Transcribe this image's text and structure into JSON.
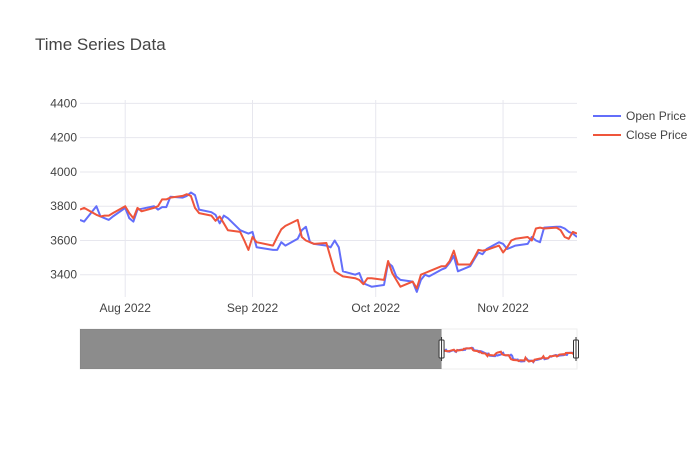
{
  "chart_data": {
    "type": "line",
    "title": "Time Series Data",
    "xlabel": "",
    "ylabel": "",
    "x_range": [
      "2022-07-21",
      "2022-11-19"
    ],
    "ylim": [
      3270,
      4420
    ],
    "y_ticks": [
      3400,
      3600,
      3800,
      4000,
      4200,
      4400
    ],
    "x_ticks": [
      {
        "date": "2022-08-01",
        "label": "Aug 2022"
      },
      {
        "date": "2022-09-01",
        "label": "Sep 2022"
      },
      {
        "date": "2022-10-01",
        "label": "Oct 2022"
      },
      {
        "date": "2022-11-01",
        "label": "Nov 2022"
      }
    ],
    "grid": true,
    "legend_position": "top-right",
    "rangeslider": {
      "visible": true,
      "full_range": [
        "2021-09-01",
        "2022-11-19"
      ],
      "selected": [
        "2022-07-21",
        "2022-11-19"
      ]
    },
    "x": [
      "2022-07-21",
      "2022-07-22",
      "2022-07-25",
      "2022-07-26",
      "2022-07-27",
      "2022-07-28",
      "2022-07-29",
      "2022-08-01",
      "2022-08-02",
      "2022-08-03",
      "2022-08-04",
      "2022-08-05",
      "2022-08-08",
      "2022-08-09",
      "2022-08-10",
      "2022-08-11",
      "2022-08-12",
      "2022-08-15",
      "2022-08-16",
      "2022-08-17",
      "2022-08-18",
      "2022-08-19",
      "2022-08-22",
      "2022-08-23",
      "2022-08-24",
      "2022-08-25",
      "2022-08-26",
      "2022-08-29",
      "2022-08-30",
      "2022-08-31",
      "2022-09-01",
      "2022-09-02",
      "2022-09-06",
      "2022-09-07",
      "2022-09-08",
      "2022-09-09",
      "2022-09-12",
      "2022-09-13",
      "2022-09-14",
      "2022-09-15",
      "2022-09-16",
      "2022-09-19",
      "2022-09-20",
      "2022-09-21",
      "2022-09-22",
      "2022-09-23",
      "2022-09-26",
      "2022-09-27",
      "2022-09-28",
      "2022-09-29",
      "2022-09-30",
      "2022-10-03",
      "2022-10-04",
      "2022-10-05",
      "2022-10-06",
      "2022-10-07",
      "2022-10-10",
      "2022-10-11",
      "2022-10-12",
      "2022-10-13",
      "2022-10-14",
      "2022-10-17",
      "2022-10-18",
      "2022-10-19",
      "2022-10-20",
      "2022-10-21",
      "2022-10-24",
      "2022-10-25",
      "2022-10-26",
      "2022-10-27",
      "2022-10-28",
      "2022-10-31",
      "2022-11-01",
      "2022-11-02",
      "2022-11-03",
      "2022-11-04",
      "2022-11-07",
      "2022-11-08",
      "2022-11-09",
      "2022-11-10",
      "2022-11-11",
      "2022-11-14",
      "2022-11-15",
      "2022-11-16",
      "2022-11-17",
      "2022-11-18",
      "2022-11-19"
    ],
    "series": [
      {
        "name": "Open Price",
        "color": "#636efa",
        "values": [
          3720,
          3710,
          3800,
          3740,
          3730,
          3720,
          3740,
          3790,
          3730,
          3710,
          3780,
          3785,
          3800,
          3780,
          3795,
          3795,
          3855,
          3850,
          3860,
          3880,
          3865,
          3780,
          3765,
          3750,
          3700,
          3745,
          3730,
          3660,
          3650,
          3640,
          3650,
          3560,
          3545,
          3545,
          3590,
          3570,
          3610,
          3660,
          3680,
          3590,
          3580,
          3570,
          3560,
          3600,
          3560,
          3420,
          3400,
          3410,
          3350,
          3340,
          3330,
          3340,
          3470,
          3450,
          3390,
          3370,
          3360,
          3300,
          3370,
          3400,
          3390,
          3430,
          3440,
          3470,
          3510,
          3420,
          3450,
          3490,
          3530,
          3520,
          3550,
          3590,
          3580,
          3550,
          3560,
          3570,
          3580,
          3620,
          3600,
          3590,
          3675,
          3680,
          3680,
          3670,
          3650,
          3640,
          3620
        ]
      },
      {
        "name": "Close Price",
        "color": "#ef553b",
        "values": [
          3780,
          3790,
          3750,
          3740,
          3745,
          3745,
          3760,
          3800,
          3760,
          3730,
          3790,
          3770,
          3790,
          3800,
          3840,
          3840,
          3850,
          3860,
          3870,
          3860,
          3790,
          3760,
          3745,
          3715,
          3740,
          3700,
          3660,
          3650,
          3600,
          3545,
          3620,
          3590,
          3570,
          3620,
          3665,
          3685,
          3720,
          3620,
          3600,
          3590,
          3580,
          3585,
          3500,
          3420,
          3405,
          3390,
          3380,
          3370,
          3345,
          3380,
          3380,
          3370,
          3480,
          3410,
          3370,
          3330,
          3360,
          3320,
          3400,
          3410,
          3420,
          3450,
          3450,
          3480,
          3540,
          3460,
          3460,
          3500,
          3545,
          3540,
          3545,
          3570,
          3530,
          3560,
          3600,
          3610,
          3620,
          3600,
          3670,
          3675,
          3670,
          3675,
          3660,
          3620,
          3610,
          3650,
          3640
        ]
      }
    ]
  }
}
